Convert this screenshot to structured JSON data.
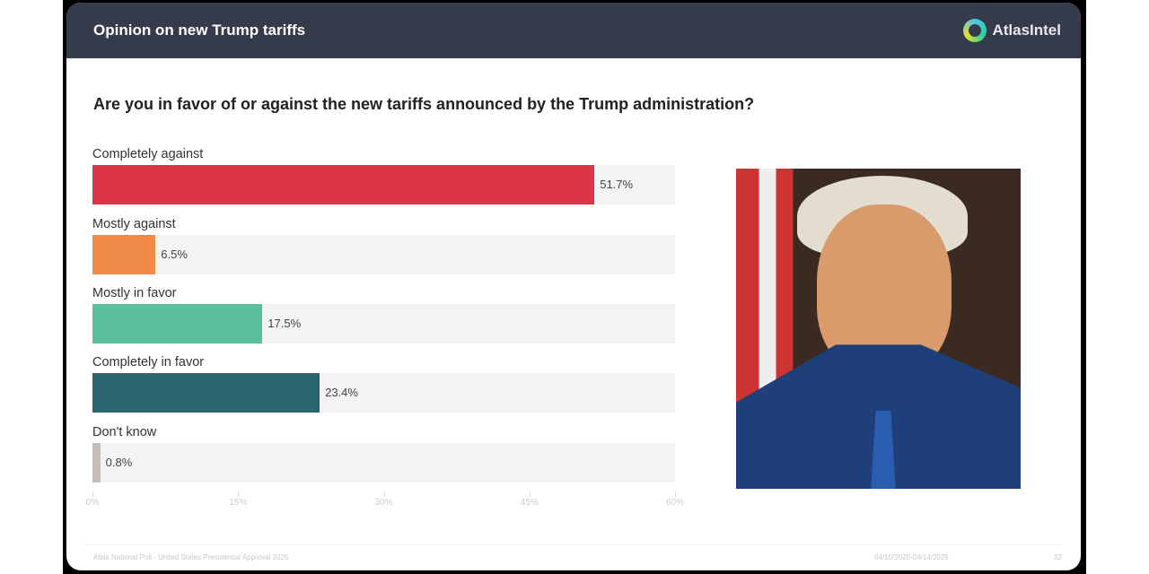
{
  "header": {
    "title": "Opinion on new Trump tariffs",
    "brand": "AtlasIntel"
  },
  "question": "Are you in favor of or against the new tariffs announced by the Trump administration?",
  "chart_data": {
    "type": "bar",
    "orientation": "horizontal",
    "categories": [
      "Completely against",
      "Mostly against",
      "Mostly in favor",
      "Completely in favor",
      "Don't know"
    ],
    "values": [
      51.7,
      6.5,
      17.5,
      23.4,
      0.8
    ],
    "value_labels": [
      "51.7%",
      "6.5%",
      "17.5%",
      "23.4%",
      "0.8%"
    ],
    "colors": [
      "#dc3545",
      "#ee8a45",
      "#5abf9c",
      "#2a6670",
      "#c9bdb8"
    ],
    "xlim": [
      0,
      60
    ],
    "ticks": [
      "0%",
      "15%",
      "30%",
      "45%",
      "60%"
    ]
  },
  "image": {
    "alt": "Portrait of Donald Trump"
  },
  "footer": {
    "source": "Atlas National Poll - United States Presidential Approval 2025",
    "dates": "04/10/2025-04/14/2025",
    "page": "32"
  }
}
